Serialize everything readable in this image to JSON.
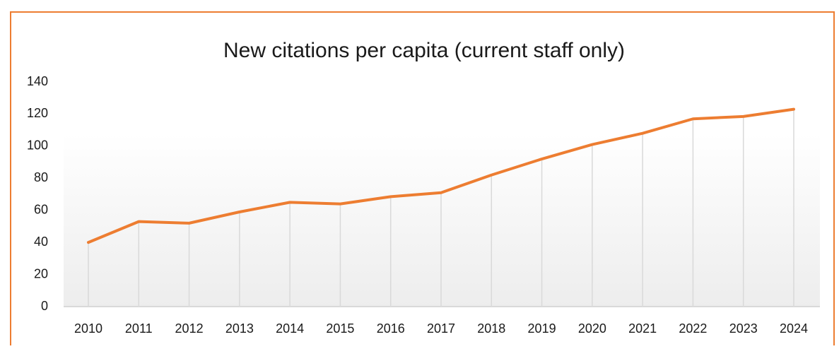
{
  "chart_data": {
    "type": "line",
    "title": "New citations per capita (current staff only)",
    "categories": [
      "2010",
      "2011",
      "2012",
      "2013",
      "2014",
      "2015",
      "2016",
      "2017",
      "2018",
      "2019",
      "2020",
      "2021",
      "2022",
      "2023",
      "2024"
    ],
    "values": [
      40,
      53,
      52,
      59,
      65,
      64,
      68.5,
      71,
      82,
      92,
      101,
      108,
      117,
      118.5,
      123
    ],
    "color": "#ed7d31",
    "ylim": [
      0,
      140
    ],
    "yticks": [
      0,
      20,
      40,
      60,
      80,
      100,
      120,
      140
    ],
    "drop_lines": true
  }
}
